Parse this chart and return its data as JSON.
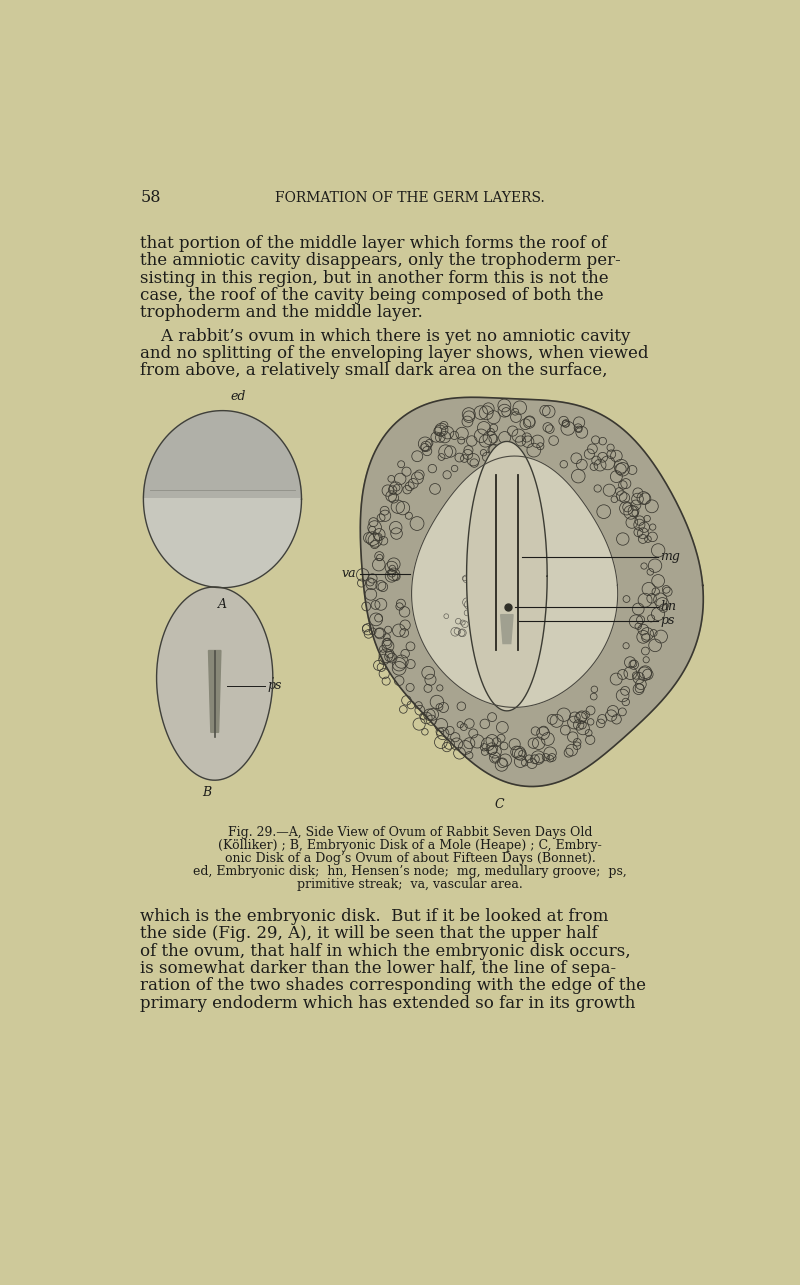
{
  "background_color": "#cec99a",
  "page_width": 8.0,
  "page_height": 12.85,
  "dpi": 100,
  "header_page_num": "58",
  "header_title": "FORMATION OF THE GERM LAYERS.",
  "body_text_1_lines": [
    "that portion of the middle layer which forms the roof of",
    "the amniotic cavity disappears, only the trophoderm per-",
    "sisting in this region, but in another form this is not the",
    "case, the roof of the cavity being composed of both the",
    "trophoderm and the middle layer."
  ],
  "body_text_2_lines": [
    "    A rabbit’s ovum in which there is yet no amniotic cavity",
    "and no splitting of the enveloping layer shows, when viewed",
    "from above, a relatively small dark area on the surface,"
  ],
  "caption_line1": "Fig. 29.—A, Side View of Ovum of Rabbit Seven Days Old",
  "caption_line2": "(Kölliker) ; B, Embryonic Disk of a Mole (Heape) ; C, Embry-",
  "caption_line3": "onic Disk of a Dog’s Ovum of about Fifteen Days (Bonnet).",
  "caption_line4": "ed, Embryonic disk;  hn, Hensen’s node;  mg, medullary groove;  ps,",
  "caption_line5": "primitive streak;  va, vascular area.",
  "body_text_3_lines": [
    "which is the embryonic disk.  But if it be looked at from",
    "the side (Fig. 29, A), it will be seen that the upper half",
    "of the ovum, that half in which the embryonic disk occurs,",
    "is somewhat darker than the lower half, the line of sepa-",
    "ration of the two shades corresponding with the edge of the",
    "primary endoderm which has extended so far in its growth"
  ],
  "text_color": "#1c1c1a"
}
